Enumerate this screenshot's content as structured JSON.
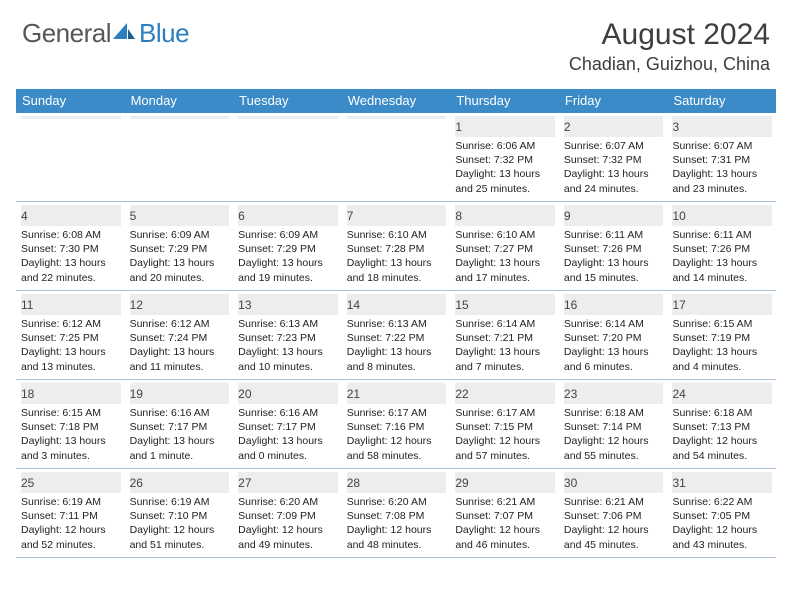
{
  "logo": {
    "general": "General",
    "blue": "Blue"
  },
  "header": {
    "title": "August 2024",
    "location": "Chadian, Guizhou, China"
  },
  "colors": {
    "accent": "#3b8bc8",
    "rowline": "#a7c4dc",
    "band": "#eceded",
    "text": "#222222"
  },
  "dow": [
    "Sunday",
    "Monday",
    "Tuesday",
    "Wednesday",
    "Thursday",
    "Friday",
    "Saturday"
  ],
  "weeks": [
    [
      {
        "n": "",
        "sr": "",
        "ss": "",
        "dl": ""
      },
      {
        "n": "",
        "sr": "",
        "ss": "",
        "dl": ""
      },
      {
        "n": "",
        "sr": "",
        "ss": "",
        "dl": ""
      },
      {
        "n": "",
        "sr": "",
        "ss": "",
        "dl": ""
      },
      {
        "n": "1",
        "sr": "Sunrise: 6:06 AM",
        "ss": "Sunset: 7:32 PM",
        "dl": "Daylight: 13 hours and 25 minutes."
      },
      {
        "n": "2",
        "sr": "Sunrise: 6:07 AM",
        "ss": "Sunset: 7:32 PM",
        "dl": "Daylight: 13 hours and 24 minutes."
      },
      {
        "n": "3",
        "sr": "Sunrise: 6:07 AM",
        "ss": "Sunset: 7:31 PM",
        "dl": "Daylight: 13 hours and 23 minutes."
      }
    ],
    [
      {
        "n": "4",
        "sr": "Sunrise: 6:08 AM",
        "ss": "Sunset: 7:30 PM",
        "dl": "Daylight: 13 hours and 22 minutes."
      },
      {
        "n": "5",
        "sr": "Sunrise: 6:09 AM",
        "ss": "Sunset: 7:29 PM",
        "dl": "Daylight: 13 hours and 20 minutes."
      },
      {
        "n": "6",
        "sr": "Sunrise: 6:09 AM",
        "ss": "Sunset: 7:29 PM",
        "dl": "Daylight: 13 hours and 19 minutes."
      },
      {
        "n": "7",
        "sr": "Sunrise: 6:10 AM",
        "ss": "Sunset: 7:28 PM",
        "dl": "Daylight: 13 hours and 18 minutes."
      },
      {
        "n": "8",
        "sr": "Sunrise: 6:10 AM",
        "ss": "Sunset: 7:27 PM",
        "dl": "Daylight: 13 hours and 17 minutes."
      },
      {
        "n": "9",
        "sr": "Sunrise: 6:11 AM",
        "ss": "Sunset: 7:26 PM",
        "dl": "Daylight: 13 hours and 15 minutes."
      },
      {
        "n": "10",
        "sr": "Sunrise: 6:11 AM",
        "ss": "Sunset: 7:26 PM",
        "dl": "Daylight: 13 hours and 14 minutes."
      }
    ],
    [
      {
        "n": "11",
        "sr": "Sunrise: 6:12 AM",
        "ss": "Sunset: 7:25 PM",
        "dl": "Daylight: 13 hours and 13 minutes."
      },
      {
        "n": "12",
        "sr": "Sunrise: 6:12 AM",
        "ss": "Sunset: 7:24 PM",
        "dl": "Daylight: 13 hours and 11 minutes."
      },
      {
        "n": "13",
        "sr": "Sunrise: 6:13 AM",
        "ss": "Sunset: 7:23 PM",
        "dl": "Daylight: 13 hours and 10 minutes."
      },
      {
        "n": "14",
        "sr": "Sunrise: 6:13 AM",
        "ss": "Sunset: 7:22 PM",
        "dl": "Daylight: 13 hours and 8 minutes."
      },
      {
        "n": "15",
        "sr": "Sunrise: 6:14 AM",
        "ss": "Sunset: 7:21 PM",
        "dl": "Daylight: 13 hours and 7 minutes."
      },
      {
        "n": "16",
        "sr": "Sunrise: 6:14 AM",
        "ss": "Sunset: 7:20 PM",
        "dl": "Daylight: 13 hours and 6 minutes."
      },
      {
        "n": "17",
        "sr": "Sunrise: 6:15 AM",
        "ss": "Sunset: 7:19 PM",
        "dl": "Daylight: 13 hours and 4 minutes."
      }
    ],
    [
      {
        "n": "18",
        "sr": "Sunrise: 6:15 AM",
        "ss": "Sunset: 7:18 PM",
        "dl": "Daylight: 13 hours and 3 minutes."
      },
      {
        "n": "19",
        "sr": "Sunrise: 6:16 AM",
        "ss": "Sunset: 7:17 PM",
        "dl": "Daylight: 13 hours and 1 minute."
      },
      {
        "n": "20",
        "sr": "Sunrise: 6:16 AM",
        "ss": "Sunset: 7:17 PM",
        "dl": "Daylight: 13 hours and 0 minutes."
      },
      {
        "n": "21",
        "sr": "Sunrise: 6:17 AM",
        "ss": "Sunset: 7:16 PM",
        "dl": "Daylight: 12 hours and 58 minutes."
      },
      {
        "n": "22",
        "sr": "Sunrise: 6:17 AM",
        "ss": "Sunset: 7:15 PM",
        "dl": "Daylight: 12 hours and 57 minutes."
      },
      {
        "n": "23",
        "sr": "Sunrise: 6:18 AM",
        "ss": "Sunset: 7:14 PM",
        "dl": "Daylight: 12 hours and 55 minutes."
      },
      {
        "n": "24",
        "sr": "Sunrise: 6:18 AM",
        "ss": "Sunset: 7:13 PM",
        "dl": "Daylight: 12 hours and 54 minutes."
      }
    ],
    [
      {
        "n": "25",
        "sr": "Sunrise: 6:19 AM",
        "ss": "Sunset: 7:11 PM",
        "dl": "Daylight: 12 hours and 52 minutes."
      },
      {
        "n": "26",
        "sr": "Sunrise: 6:19 AM",
        "ss": "Sunset: 7:10 PM",
        "dl": "Daylight: 12 hours and 51 minutes."
      },
      {
        "n": "27",
        "sr": "Sunrise: 6:20 AM",
        "ss": "Sunset: 7:09 PM",
        "dl": "Daylight: 12 hours and 49 minutes."
      },
      {
        "n": "28",
        "sr": "Sunrise: 6:20 AM",
        "ss": "Sunset: 7:08 PM",
        "dl": "Daylight: 12 hours and 48 minutes."
      },
      {
        "n": "29",
        "sr": "Sunrise: 6:21 AM",
        "ss": "Sunset: 7:07 PM",
        "dl": "Daylight: 12 hours and 46 minutes."
      },
      {
        "n": "30",
        "sr": "Sunrise: 6:21 AM",
        "ss": "Sunset: 7:06 PM",
        "dl": "Daylight: 12 hours and 45 minutes."
      },
      {
        "n": "31",
        "sr": "Sunrise: 6:22 AM",
        "ss": "Sunset: 7:05 PM",
        "dl": "Daylight: 12 hours and 43 minutes."
      }
    ]
  ]
}
